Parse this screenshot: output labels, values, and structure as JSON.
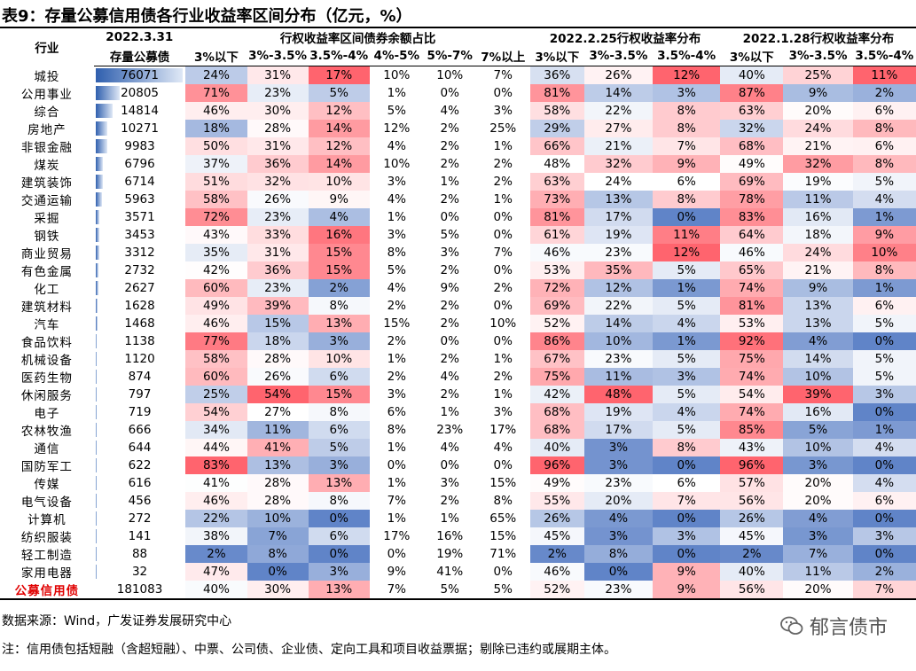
{
  "title": "表9：存量公募信用债各行业收益率区间分布（亿元，%）",
  "header": {
    "industry": "行业",
    "date_main": "2022.3.31",
    "amount": "存量公募债",
    "group1": "行权收益率区间债券余额占比",
    "group2": "2022.2.25行权收益率分布",
    "group3": "2022.1.28行权收益率分布",
    "g1_cols": [
      "3%以下",
      "3%-3.5%",
      "3.5%-4%",
      "4%-5%",
      "5%-7%",
      "7%以上"
    ],
    "g2_cols": [
      "3%以下",
      "3%-3.5%",
      "3.5%-4%"
    ],
    "g3_cols": [
      "3%以下",
      "3%-3.5%",
      "3.5%-4%"
    ]
  },
  "rows": [
    {
      "name": "城投",
      "amt": "76071",
      "amt_val": 76071,
      "g1": [
        "24%",
        "31%",
        "17%",
        "10%",
        "10%",
        "7%"
      ],
      "g2": [
        "36%",
        "26%",
        "12%"
      ],
      "g3": [
        "40%",
        "25%",
        "11%"
      ]
    },
    {
      "name": "公用事业",
      "amt": "20805",
      "amt_val": 20805,
      "g1": [
        "71%",
        "23%",
        "5%",
        "1%",
        "0%",
        "0%"
      ],
      "g2": [
        "81%",
        "14%",
        "3%"
      ],
      "g3": [
        "87%",
        "9%",
        "2%"
      ]
    },
    {
      "name": "综合",
      "amt": "14814",
      "amt_val": 14814,
      "g1": [
        "46%",
        "30%",
        "12%",
        "5%",
        "4%",
        "3%"
      ],
      "g2": [
        "58%",
        "22%",
        "8%"
      ],
      "g3": [
        "63%",
        "20%",
        "6%"
      ]
    },
    {
      "name": "房地产",
      "amt": "10271",
      "amt_val": 10271,
      "g1": [
        "18%",
        "28%",
        "14%",
        "12%",
        "2%",
        "25%"
      ],
      "g2": [
        "29%",
        "27%",
        "8%"
      ],
      "g3": [
        "32%",
        "24%",
        "8%"
      ]
    },
    {
      "name": "非银金融",
      "amt": "9983",
      "amt_val": 9983,
      "g1": [
        "50%",
        "31%",
        "12%",
        "4%",
        "2%",
        "1%"
      ],
      "g2": [
        "66%",
        "21%",
        "7%"
      ],
      "g3": [
        "68%",
        "21%",
        "6%"
      ]
    },
    {
      "name": "煤炭",
      "amt": "6796",
      "amt_val": 6796,
      "g1": [
        "37%",
        "36%",
        "14%",
        "10%",
        "2%",
        "2%"
      ],
      "g2": [
        "48%",
        "32%",
        "9%"
      ],
      "g3": [
        "49%",
        "32%",
        "8%"
      ]
    },
    {
      "name": "建筑装饰",
      "amt": "6714",
      "amt_val": 6714,
      "g1": [
        "51%",
        "32%",
        "10%",
        "3%",
        "1%",
        "2%"
      ],
      "g2": [
        "63%",
        "24%",
        "6%"
      ],
      "g3": [
        "69%",
        "19%",
        "5%"
      ]
    },
    {
      "name": "交通运输",
      "amt": "5963",
      "amt_val": 5963,
      "g1": [
        "58%",
        "26%",
        "9%",
        "4%",
        "2%",
        "1%"
      ],
      "g2": [
        "73%",
        "13%",
        "8%"
      ],
      "g3": [
        "78%",
        "11%",
        "4%"
      ]
    },
    {
      "name": "采掘",
      "amt": "3571",
      "amt_val": 3571,
      "g1": [
        "72%",
        "23%",
        "4%",
        "1%",
        "0%",
        "0%"
      ],
      "g2": [
        "81%",
        "17%",
        "0%"
      ],
      "g3": [
        "83%",
        "16%",
        "1%"
      ]
    },
    {
      "name": "钢铁",
      "amt": "3453",
      "amt_val": 3453,
      "g1": [
        "43%",
        "33%",
        "16%",
        "3%",
        "5%",
        "0%"
      ],
      "g2": [
        "61%",
        "19%",
        "11%"
      ],
      "g3": [
        "64%",
        "18%",
        "9%"
      ]
    },
    {
      "name": "商业贸易",
      "amt": "3312",
      "amt_val": 3312,
      "g1": [
        "35%",
        "31%",
        "15%",
        "8%",
        "3%",
        "7%"
      ],
      "g2": [
        "46%",
        "23%",
        "12%"
      ],
      "g3": [
        "46%",
        "24%",
        "10%"
      ]
    },
    {
      "name": "有色金属",
      "amt": "2732",
      "amt_val": 2732,
      "g1": [
        "42%",
        "36%",
        "15%",
        "5%",
        "2%",
        "0%"
      ],
      "g2": [
        "53%",
        "35%",
        "5%"
      ],
      "g3": [
        "65%",
        "21%",
        "8%"
      ]
    },
    {
      "name": "化工",
      "amt": "2627",
      "amt_val": 2627,
      "g1": [
        "60%",
        "23%",
        "2%",
        "4%",
        "9%",
        "2%"
      ],
      "g2": [
        "72%",
        "12%",
        "1%"
      ],
      "g3": [
        "74%",
        "9%",
        "1%"
      ]
    },
    {
      "name": "建筑材料",
      "amt": "1628",
      "amt_val": 1628,
      "g1": [
        "49%",
        "39%",
        "8%",
        "2%",
        "2%",
        "0%"
      ],
      "g2": [
        "69%",
        "22%",
        "5%"
      ],
      "g3": [
        "81%",
        "13%",
        "6%"
      ]
    },
    {
      "name": "汽车",
      "amt": "1468",
      "amt_val": 1468,
      "g1": [
        "46%",
        "15%",
        "13%",
        "15%",
        "2%",
        "10%"
      ],
      "g2": [
        "52%",
        "14%",
        "4%"
      ],
      "g3": [
        "53%",
        "13%",
        "5%"
      ]
    },
    {
      "name": "食品饮料",
      "amt": "1138",
      "amt_val": 1138,
      "g1": [
        "77%",
        "18%",
        "3%",
        "2%",
        "0%",
        "0%"
      ],
      "g2": [
        "86%",
        "10%",
        "1%"
      ],
      "g3": [
        "92%",
        "4%",
        "0%"
      ]
    },
    {
      "name": "机械设备",
      "amt": "1120",
      "amt_val": 1120,
      "g1": [
        "58%",
        "28%",
        "10%",
        "1%",
        "2%",
        "1%"
      ],
      "g2": [
        "67%",
        "23%",
        "5%"
      ],
      "g3": [
        "75%",
        "14%",
        "5%"
      ]
    },
    {
      "name": "医药生物",
      "amt": "874",
      "amt_val": 874,
      "g1": [
        "60%",
        "26%",
        "6%",
        "2%",
        "4%",
        "2%"
      ],
      "g2": [
        "75%",
        "11%",
        "3%"
      ],
      "g3": [
        "74%",
        "10%",
        "5%"
      ]
    },
    {
      "name": "休闲服务",
      "amt": "797",
      "amt_val": 797,
      "g1": [
        "25%",
        "54%",
        "15%",
        "3%",
        "2%",
        "1%"
      ],
      "g2": [
        "42%",
        "48%",
        "5%"
      ],
      "g3": [
        "54%",
        "39%",
        "3%"
      ]
    },
    {
      "name": "电子",
      "amt": "719",
      "amt_val": 719,
      "g1": [
        "54%",
        "27%",
        "8%",
        "6%",
        "1%",
        "3%"
      ],
      "g2": [
        "68%",
        "19%",
        "4%"
      ],
      "g3": [
        "74%",
        "16%",
        "0%"
      ]
    },
    {
      "name": "农林牧渔",
      "amt": "666",
      "amt_val": 666,
      "g1": [
        "34%",
        "11%",
        "6%",
        "8%",
        "23%",
        "17%"
      ],
      "g2": [
        "68%",
        "17%",
        "5%"
      ],
      "g3": [
        "85%",
        "5%",
        "1%"
      ]
    },
    {
      "name": "通信",
      "amt": "644",
      "amt_val": 644,
      "g1": [
        "44%",
        "41%",
        "5%",
        "1%",
        "4%",
        "4%"
      ],
      "g2": [
        "40%",
        "3%",
        "8%"
      ],
      "g3": [
        "43%",
        "10%",
        "4%"
      ]
    },
    {
      "name": "国防军工",
      "amt": "622",
      "amt_val": 622,
      "g1": [
        "83%",
        "13%",
        "3%",
        "0%",
        "0%",
        "0%"
      ],
      "g2": [
        "96%",
        "3%",
        "0%"
      ],
      "g3": [
        "96%",
        "3%",
        "0%"
      ]
    },
    {
      "name": "传媒",
      "amt": "616",
      "amt_val": 616,
      "g1": [
        "41%",
        "28%",
        "13%",
        "1%",
        "3%",
        "15%"
      ],
      "g2": [
        "49%",
        "23%",
        "6%"
      ],
      "g3": [
        "57%",
        "20%",
        "4%"
      ]
    },
    {
      "name": "电气设备",
      "amt": "456",
      "amt_val": 456,
      "g1": [
        "46%",
        "28%",
        "8%",
        "7%",
        "2%",
        "8%"
      ],
      "g2": [
        "55%",
        "20%",
        "7%"
      ],
      "g3": [
        "56%",
        "20%",
        "6%"
      ]
    },
    {
      "name": "计算机",
      "amt": "272",
      "amt_val": 272,
      "g1": [
        "22%",
        "10%",
        "0%",
        "1%",
        "1%",
        "65%"
      ],
      "g2": [
        "26%",
        "4%",
        "0%"
      ],
      "g3": [
        "26%",
        "4%",
        "0%"
      ]
    },
    {
      "name": "纺织服装",
      "amt": "141",
      "amt_val": 141,
      "g1": [
        "38%",
        "7%",
        "6%",
        "17%",
        "16%",
        "15%"
      ],
      "g2": [
        "45%",
        "3%",
        "3%"
      ],
      "g3": [
        "45%",
        "3%",
        "3%"
      ]
    },
    {
      "name": "轻工制造",
      "amt": "88",
      "amt_val": 88,
      "g1": [
        "2%",
        "8%",
        "0%",
        "0%",
        "19%",
        "71%"
      ],
      "g2": [
        "2%",
        "8%",
        "0%"
      ],
      "g3": [
        "2%",
        "7%",
        "0%"
      ]
    },
    {
      "name": "家用电器",
      "amt": "32",
      "amt_val": 32,
      "g1": [
        "47%",
        "0%",
        "3%",
        "9%",
        "41%",
        "0%"
      ],
      "g2": [
        "46%",
        "0%",
        "9%"
      ],
      "g3": [
        "40%",
        "11%",
        "2%"
      ]
    },
    {
      "name": "公募信用债",
      "amt": "181083",
      "amt_val": 181083,
      "g1": [
        "40%",
        "30%",
        "13%",
        "7%",
        "5%",
        "5%"
      ],
      "g2": [
        "52%",
        "23%",
        "9%"
      ],
      "g3": [
        "56%",
        "20%",
        "7%"
      ]
    }
  ],
  "source": "数据来源：Wind，广发证券发展研究中心",
  "note": "注：信用债包括短融（含超短融）、中票、公司债、企业债、定向工具和项目收益票据；剔除已违约或展期主体。",
  "logo_text": "郁言债市"
}
